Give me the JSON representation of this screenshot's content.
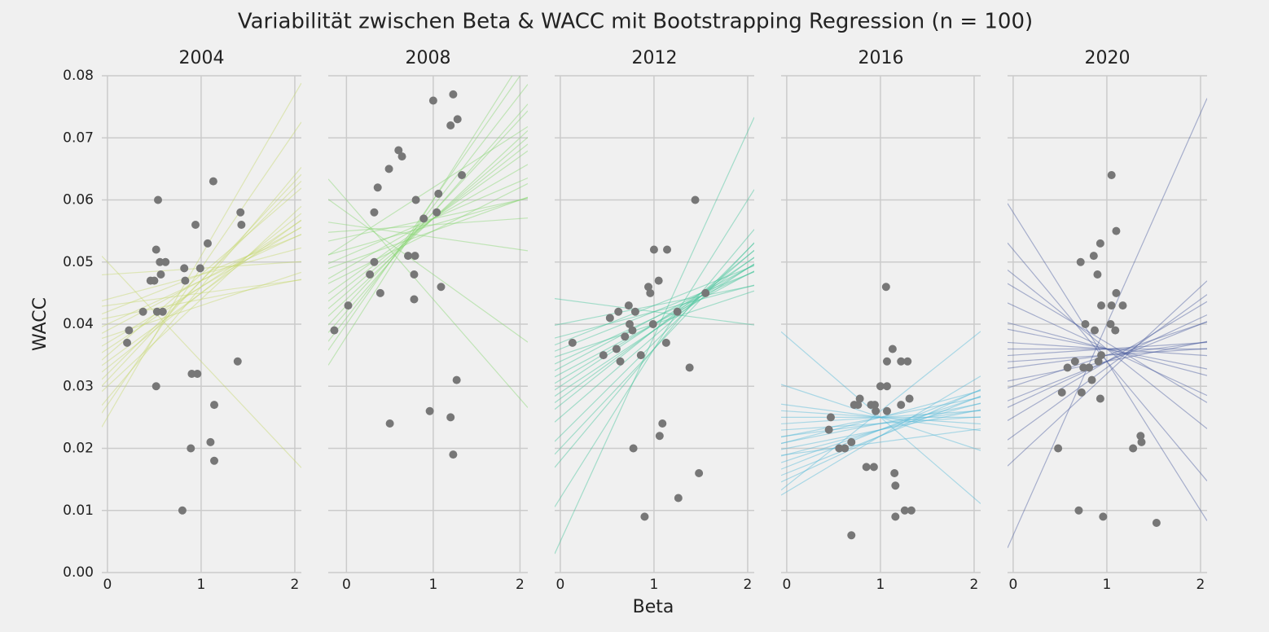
{
  "title": "Variabilität zwischen Beta & WACC mit Bootstrapping Regression (n = 100)",
  "x_label": "Beta",
  "y_label": "WACC",
  "chart_data": [
    {
      "type": "scatter",
      "title": "2004",
      "color": "#c5d86d",
      "point_color": "#777777",
      "x": [
        0.21,
        0.23,
        0.38,
        0.46,
        0.5,
        0.52,
        0.54,
        0.56,
        0.57,
        0.62,
        0.53,
        0.59,
        0.52,
        0.82,
        0.83,
        0.94,
        0.99,
        1.07,
        1.13,
        0.9,
        0.96,
        0.89,
        1.1,
        1.14,
        1.14,
        0.8,
        1.39,
        1.42,
        1.43
      ],
      "values": [
        0.037,
        0.039,
        0.042,
        0.047,
        0.047,
        0.052,
        0.06,
        0.05,
        0.048,
        0.05,
        0.042,
        0.042,
        0.03,
        0.049,
        0.047,
        0.056,
        0.049,
        0.053,
        0.063,
        0.032,
        0.032,
        0.02,
        0.021,
        0.027,
        0.018,
        0.01,
        0.034,
        0.058,
        0.056
      ],
      "intercepts": [
        0.036,
        0.03,
        0.042,
        0.025,
        0.048,
        0.033,
        0.039,
        0.044,
        0.028,
        0.034,
        0.04,
        0.031,
        0.037,
        0.05,
        0.035,
        0.038,
        0.032,
        0.041,
        0.027,
        0.043
      ],
      "slopes": [
        0.01,
        0.014,
        0.006,
        0.026,
        0.001,
        0.012,
        0.008,
        0.004,
        0.018,
        0.011,
        0.007,
        0.016,
        0.009,
        -0.016,
        0.013,
        0.005,
        0.015,
        0.003,
        0.022,
        0.002
      ],
      "xlim": [
        -0.06,
        2.07
      ],
      "xticks": [
        0,
        1,
        2
      ],
      "ylim": [
        0,
        0.08
      ],
      "yticks": [
        {
          "value": 0,
          "label": "0.00"
        },
        0.01,
        0.02,
        0.03,
        0.04,
        0.05,
        0.06,
        0.07,
        0.08
      ]
    },
    {
      "type": "scatter",
      "title": "2008",
      "color": "#86d56f",
      "point_color": "#777777",
      "x": [
        -0.14,
        0.02,
        0.27,
        0.32,
        0.32,
        0.36,
        0.39,
        0.49,
        0.6,
        0.64,
        0.5,
        0.71,
        0.78,
        0.78,
        0.79,
        0.8,
        0.89,
        1.0,
        0.96,
        1.04,
        1.06,
        1.09,
        1.2,
        1.23,
        1.28,
        1.33,
        1.2,
        1.27,
        1.23
      ],
      "values": [
        0.039,
        0.043,
        0.048,
        0.05,
        0.058,
        0.062,
        0.045,
        0.065,
        0.068,
        0.067,
        0.024,
        0.051,
        0.044,
        0.048,
        0.051,
        0.06,
        0.057,
        0.076,
        0.026,
        0.058,
        0.061,
        0.046,
        0.072,
        0.077,
        0.073,
        0.064,
        0.025,
        0.031,
        0.019
      ],
      "intercepts": [
        0.049,
        0.044,
        0.054,
        0.04,
        0.058,
        0.047,
        0.051,
        0.042,
        0.056,
        0.046,
        0.052,
        0.038,
        0.06,
        0.048,
        0.045,
        0.05,
        0.043,
        0.055,
        0.041,
        0.053
      ],
      "slopes": [
        0.008,
        0.013,
        0.003,
        0.02,
        -0.01,
        0.01,
        0.006,
        0.016,
        -0.002,
        0.011,
        0.004,
        0.022,
        -0.016,
        0.007,
        0.012,
        0.005,
        0.015,
        0.001,
        0.018,
        0.009
      ],
      "xlim": [
        -0.21,
        2.09
      ],
      "xticks": [
        0,
        1,
        2
      ],
      "ylim": [
        0,
        0.08
      ],
      "yticks": [
        {
          "value": 0,
          "label": "0.00"
        },
        0.01,
        0.02,
        0.03,
        0.04,
        0.05,
        0.06,
        0.07,
        0.08
      ]
    },
    {
      "type": "scatter",
      "title": "2012",
      "color": "#42c49a",
      "point_color": "#777777",
      "x": [
        0.13,
        0.46,
        0.53,
        0.6,
        0.62,
        0.64,
        0.69,
        0.73,
        0.74,
        0.77,
        0.8,
        0.78,
        0.86,
        0.9,
        0.94,
        0.96,
        0.99,
        1.0,
        1.05,
        1.06,
        1.09,
        1.13,
        1.14,
        1.25,
        1.26,
        1.38,
        1.44,
        1.48,
        1.55
      ],
      "values": [
        0.037,
        0.035,
        0.041,
        0.036,
        0.042,
        0.034,
        0.038,
        0.043,
        0.04,
        0.039,
        0.042,
        0.02,
        0.035,
        0.009,
        0.046,
        0.045,
        0.04,
        0.052,
        0.047,
        0.022,
        0.024,
        0.037,
        0.052,
        0.042,
        0.012,
        0.033,
        0.06,
        0.016,
        0.045
      ],
      "intercepts": [
        0.031,
        0.025,
        0.036,
        0.018,
        0.04,
        0.028,
        0.033,
        0.022,
        0.038,
        0.03,
        0.034,
        0.012,
        0.044,
        0.027,
        0.032,
        0.02,
        0.035,
        0.029,
        0.005,
        0.037
      ],
      "slopes": [
        0.009,
        0.013,
        0.006,
        0.018,
        0.003,
        0.011,
        0.008,
        0.015,
        0.004,
        0.01,
        0.007,
        0.024,
        -0.002,
        0.012,
        0.008,
        0.016,
        0.005,
        0.01,
        0.033,
        0.006
      ],
      "xlim": [
        -0.06,
        2.07
      ],
      "xticks": [
        0,
        1,
        2
      ],
      "ylim": [
        0,
        0.08
      ],
      "yticks": [
        {
          "value": 0,
          "label": "0.00"
        },
        0.01,
        0.02,
        0.03,
        0.04,
        0.05,
        0.06,
        0.07,
        0.08
      ]
    },
    {
      "type": "scatter",
      "title": "2016",
      "color": "#52b8d6",
      "point_color": "#777777",
      "x": [
        0.45,
        0.47,
        0.56,
        0.62,
        0.69,
        0.69,
        0.72,
        0.76,
        0.78,
        0.85,
        0.9,
        0.93,
        0.94,
        0.95,
        1.0,
        1.07,
        1.06,
        1.07,
        1.07,
        1.13,
        1.15,
        1.16,
        1.16,
        1.22,
        1.22,
        1.26,
        1.29,
        1.31,
        1.33
      ],
      "values": [
        0.023,
        0.025,
        0.02,
        0.02,
        0.021,
        0.006,
        0.027,
        0.027,
        0.028,
        0.017,
        0.027,
        0.017,
        0.027,
        0.026,
        0.03,
        0.03,
        0.046,
        0.034,
        0.026,
        0.036,
        0.016,
        0.014,
        0.009,
        0.034,
        0.027,
        0.01,
        0.034,
        0.028,
        0.01
      ],
      "intercepts": [
        0.021,
        0.018,
        0.024,
        0.015,
        0.027,
        0.019,
        0.022,
        0.013,
        0.03,
        0.02,
        0.023,
        0.017,
        0.025,
        0.038,
        0.016,
        0.021,
        0.026,
        0.014,
        0.019,
        0.022
      ],
      "slopes": [
        0.003,
        0.005,
        0.001,
        0.007,
        -0.002,
        0.004,
        0.002,
        0.009,
        -0.005,
        0.003,
        0.001,
        0.006,
        0.0,
        -0.013,
        0.006,
        0.004,
        -0.001,
        0.012,
        0.002,
        0.003
      ],
      "xlim": [
        -0.06,
        2.07
      ],
      "xticks": [
        0,
        1,
        2
      ],
      "ylim": [
        0,
        0.08
      ],
      "yticks": [
        {
          "value": 0,
          "label": "0.00"
        },
        0.01,
        0.02,
        0.03,
        0.04,
        0.05,
        0.06,
        0.07,
        0.08
      ]
    },
    {
      "type": "scatter",
      "title": "2020",
      "color": "#4a5a9e",
      "point_color": "#777777",
      "x": [
        0.48,
        0.52,
        0.58,
        0.66,
        0.7,
        0.72,
        0.73,
        0.75,
        0.77,
        0.81,
        0.84,
        0.86,
        0.87,
        0.9,
        0.91,
        0.93,
        0.94,
        0.94,
        0.93,
        0.96,
        1.04,
        1.05,
        1.09,
        1.1,
        1.1,
        1.17,
        1.05,
        1.28,
        1.36,
        1.37,
        1.53
      ],
      "values": [
        0.02,
        0.029,
        0.033,
        0.034,
        0.01,
        0.05,
        0.029,
        0.033,
        0.04,
        0.033,
        0.031,
        0.051,
        0.039,
        0.048,
        0.034,
        0.028,
        0.035,
        0.043,
        0.053,
        0.009,
        0.04,
        0.043,
        0.039,
        0.055,
        0.045,
        0.043,
        0.064,
        0.02,
        0.022,
        0.021,
        0.008
      ],
      "intercepts": [
        0.034,
        0.028,
        0.04,
        0.022,
        0.046,
        0.031,
        0.037,
        0.025,
        0.052,
        0.033,
        0.036,
        0.018,
        0.058,
        0.03,
        0.039,
        0.006,
        0.043,
        0.027,
        0.035,
        0.048
      ],
      "slopes": [
        0.001,
        0.006,
        -0.004,
        0.011,
        -0.009,
        0.003,
        -0.001,
        0.009,
        -0.018,
        0.002,
        0.0,
        0.014,
        -0.024,
        0.005,
        -0.003,
        0.034,
        -0.007,
        0.007,
        0.001,
        -0.012
      ],
      "xlim": [
        -0.06,
        2.07
      ],
      "xticks": [
        0,
        1,
        2
      ],
      "ylim": [
        0,
        0.08
      ],
      "yticks": [
        {
          "value": 0,
          "label": "0.00"
        },
        0.01,
        0.02,
        0.03,
        0.04,
        0.05,
        0.06,
        0.07,
        0.08
      ]
    }
  ]
}
